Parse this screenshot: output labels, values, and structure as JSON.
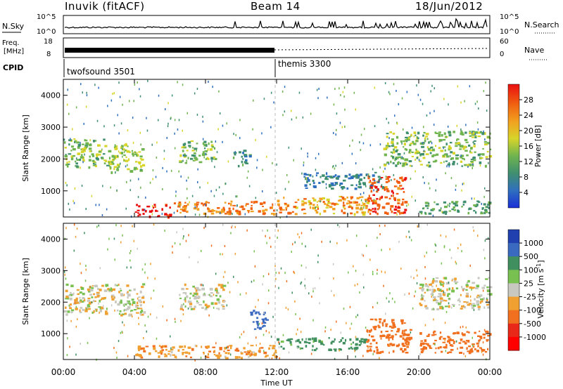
{
  "header": {
    "station": "Inuvik (fitACF)",
    "beam": "Beam 14",
    "date": "18/Jun/2012"
  },
  "noise_panel": {
    "left_label": "N.Sky",
    "right_label": "N.Search",
    "left_ticks": [
      "10^5",
      "10^0"
    ],
    "right_ticks": [
      "10^5",
      "10^0"
    ]
  },
  "freq_panel": {
    "left_label_line1": "Freq.",
    "left_label_line2": "[MHz]",
    "right_label": "Nave",
    "left_ticks": [
      "18",
      "8"
    ],
    "right_ticks": [
      "60",
      "0"
    ]
  },
  "cpid_panel": {
    "label": "CPID",
    "segments": [
      {
        "name": "twofsound 3501",
        "start_hour": 0
      },
      {
        "name": "themis 3300",
        "start_hour": 12
      }
    ]
  },
  "power_colorbar": {
    "label": "Power [dB]",
    "ticks": [
      "4",
      "8",
      "12",
      "16",
      "20",
      "24",
      "28"
    ],
    "colors": [
      "#1a2fd6",
      "#2f6fbf",
      "#3f8f6f",
      "#6fb44f",
      "#d7d42a",
      "#f2a020",
      "#f06010",
      "#ea1010"
    ]
  },
  "velocity_colorbar": {
    "label": "Velocity [m s",
    "label_sup": "-1",
    "label_close": "]",
    "ticks": [
      "1000",
      "500",
      "100",
      "25",
      "-25",
      "-100",
      "-500",
      "-1000"
    ],
    "colors": [
      "#2040b0",
      "#3a6ac0",
      "#3f8f5f",
      "#78c050",
      "#c8c8c0",
      "#f0a030",
      "#f07020",
      "#e82818",
      "#ff0000"
    ]
  },
  "axes": {
    "ylabel": "Slant Range [km]",
    "xlabel": "Time UT",
    "xticks": [
      "00:00",
      "04:00",
      "08:00",
      "12:00",
      "16:00",
      "20:00",
      "00:00"
    ],
    "yticks": [
      "1000",
      "2000",
      "3000",
      "4000"
    ]
  },
  "chart_data": {
    "type": "heatmap",
    "title": "Inuvik (fitACF) Beam 14 18/Jun/2012",
    "xlabel": "Time UT",
    "ylabel": "Slant Range [km]",
    "xlim_hours": [
      0,
      24
    ],
    "ylim_km": [
      180,
      4500
    ],
    "panels": [
      {
        "name": "Power",
        "unit": "dB",
        "colorbar_range": [
          0,
          32
        ],
        "regions": [
          {
            "t0": 0.0,
            "t1": 2.5,
            "r0": 1750,
            "r1": 2650,
            "value": 14
          },
          {
            "t0": 2.5,
            "t1": 4.5,
            "r0": 1600,
            "r1": 2500,
            "value": 16
          },
          {
            "t0": 6.5,
            "t1": 8.5,
            "r0": 1900,
            "r1": 2600,
            "value": 14
          },
          {
            "t0": 9.5,
            "t1": 10.5,
            "r0": 1800,
            "r1": 2300,
            "value": 10
          },
          {
            "t0": 4.0,
            "t1": 6.0,
            "r0": 180,
            "r1": 600,
            "value": 30
          },
          {
            "t0": 6.0,
            "t1": 12.0,
            "r0": 300,
            "r1": 700,
            "value": 24
          },
          {
            "t0": 12.0,
            "t1": 17.5,
            "r0": 300,
            "r1": 850,
            "value": 22
          },
          {
            "t0": 17.0,
            "t1": 19.2,
            "r0": 300,
            "r1": 1500,
            "value": 27
          },
          {
            "t0": 18.0,
            "t1": 24.0,
            "r0": 1800,
            "r1": 2900,
            "value": 14
          },
          {
            "t0": 13.5,
            "t1": 18.0,
            "r0": 1100,
            "r1": 1600,
            "value": 8
          },
          {
            "t0": 20.0,
            "t1": 24.0,
            "r0": 300,
            "r1": 700,
            "value": 12
          }
        ]
      },
      {
        "name": "Velocity",
        "unit": "m s-1",
        "colorbar_range": [
          -1000,
          1000
        ],
        "regions": [
          {
            "t0": 0.0,
            "t1": 4.5,
            "r0": 1600,
            "r1": 2600,
            "value": 0
          },
          {
            "t0": 6.5,
            "t1": 9.0,
            "r0": 1800,
            "r1": 2600,
            "value": 0
          },
          {
            "t0": 12.0,
            "t1": 17.0,
            "r0": 500,
            "r1": 900,
            "value": 150
          },
          {
            "t0": 4.0,
            "t1": 12.0,
            "r0": 250,
            "r1": 650,
            "value": -80
          },
          {
            "t0": 17.0,
            "t1": 19.5,
            "r0": 400,
            "r1": 1500,
            "value": -400
          },
          {
            "t0": 10.5,
            "t1": 11.5,
            "r0": 1100,
            "r1": 1800,
            "value": 600
          },
          {
            "t0": 20.0,
            "t1": 24.0,
            "r0": 1800,
            "r1": 2800,
            "value": 0
          },
          {
            "t0": 20.0,
            "t1": 24.0,
            "r0": 400,
            "r1": 1100,
            "value": -200
          }
        ]
      }
    ]
  }
}
